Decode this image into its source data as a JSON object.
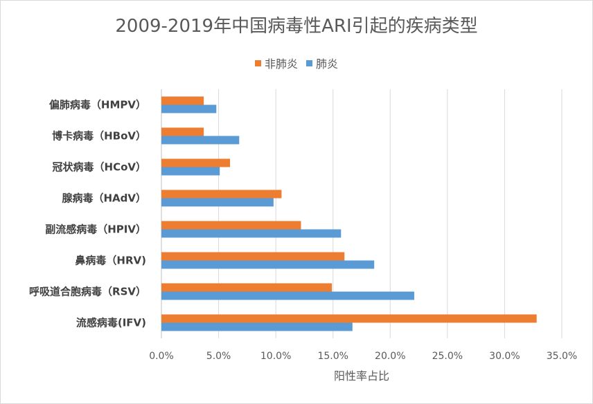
{
  "chart_data": {
    "type": "bar",
    "orientation": "horizontal",
    "title": "2009-2019年中国病毒性ARI引起的疾病类型",
    "xlabel": "阳性率占比",
    "ylabel": "",
    "xlim": [
      0,
      35
    ],
    "xticks": [
      "0.0%",
      "5.0%",
      "10.0%",
      "15.0%",
      "20.0%",
      "25.0%",
      "30.0%",
      "35.0%"
    ],
    "grid": true,
    "legend_position": "top",
    "categories": [
      "偏肺病毒（HMPV）",
      "博卡病毒（HBoV）",
      "冠状病毒（HCoV）",
      "腺病毒（HAdV）",
      "副流感病毒（HPIV）",
      "鼻病毒（HRV)",
      "呼吸道合胞病毒（RSV）",
      "流感病毒(IFV)"
    ],
    "series": [
      {
        "name": "非肺炎",
        "color": "#ED7D31",
        "values": [
          3.7,
          3.7,
          6.0,
          10.5,
          12.2,
          16.0,
          14.9,
          32.8
        ]
      },
      {
        "name": "肺炎",
        "color": "#5B9BD5",
        "values": [
          4.8,
          6.8,
          5.1,
          9.8,
          15.7,
          18.6,
          22.1,
          16.7
        ]
      }
    ]
  }
}
